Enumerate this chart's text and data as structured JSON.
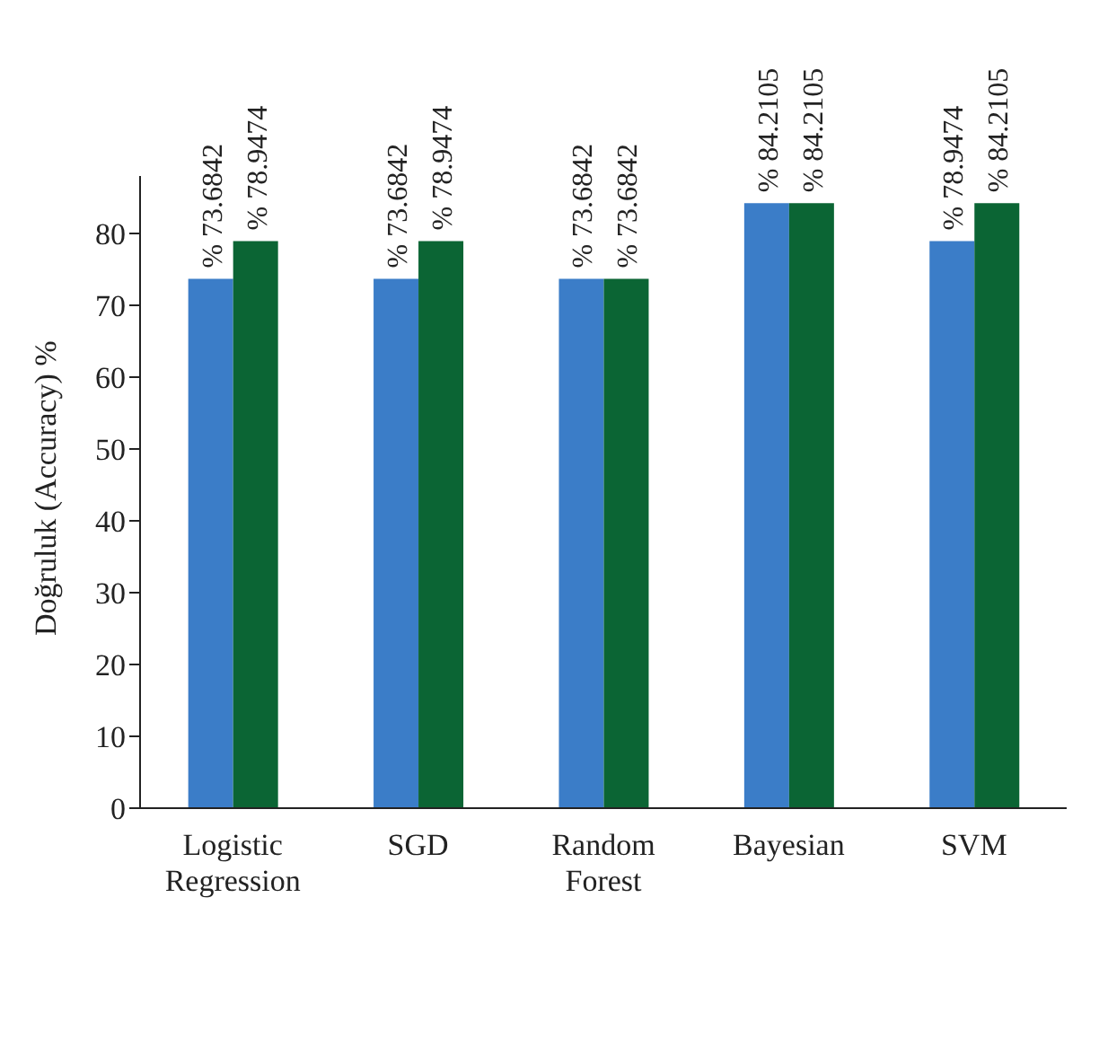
{
  "chart_data": {
    "type": "bar",
    "ylabel": "Doğruluk (Accuracy) %",
    "categories": [
      "Logistic Regression",
      "SGD",
      "Random Forest",
      "Bayesian",
      "SVM"
    ],
    "series": [
      {
        "color": "#3b7dc8",
        "values": [
          73.6842,
          73.6842,
          73.6842,
          84.2105,
          78.9474
        ],
        "value_labels": [
          "% 73.6842",
          "% 73.6842",
          "% 73.6842",
          "% 84.2105",
          "% 78.9474"
        ]
      },
      {
        "color": "#0b6534",
        "values": [
          78.9474,
          78.9474,
          73.6842,
          84.2105,
          84.2105
        ],
        "value_labels": [
          "% 78.9474",
          "% 78.9474",
          "% 73.6842",
          "% 84.2105",
          "% 84.2105"
        ]
      }
    ],
    "ylim": [
      0,
      88
    ],
    "yticks": [
      0,
      10,
      20,
      30,
      40,
      50,
      60,
      70,
      80
    ],
    "grid": false,
    "legend": false
  }
}
